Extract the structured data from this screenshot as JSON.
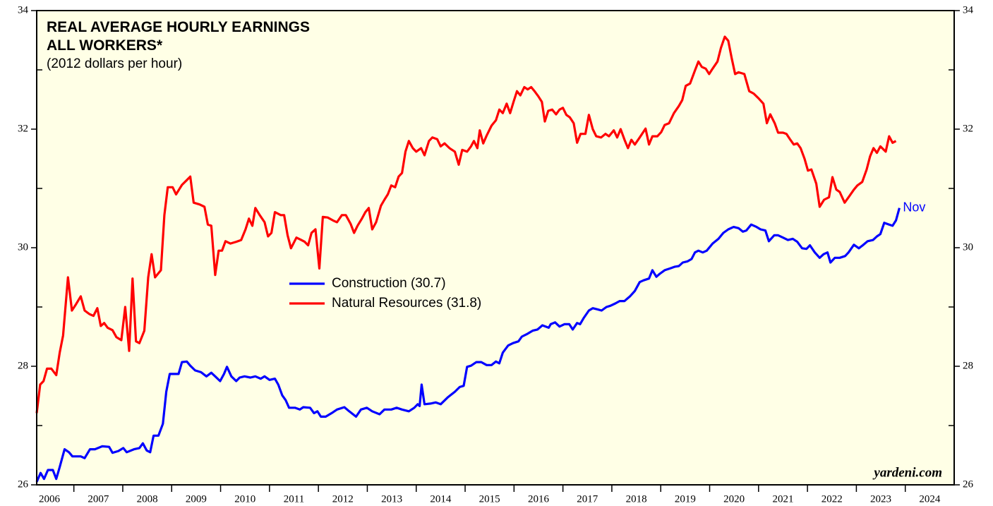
{
  "chart_data": {
    "type": "line",
    "title": [
      "REAL AVERAGE HOURLY EARNINGS",
      "ALL WORKERS*"
    ],
    "subtitle": "(2012 dollars per hour)",
    "source": "yardeni.com",
    "annotation": "Nov",
    "xlim": [
      2006.24,
      2025
    ],
    "xticks": [
      {
        "value": 2006.5,
        "label": "2006"
      },
      {
        "value": 2007.5,
        "label": "2007"
      },
      {
        "value": 2008.5,
        "label": "2008"
      },
      {
        "value": 2009.5,
        "label": "2009"
      },
      {
        "value": 2010.5,
        "label": "2010"
      },
      {
        "value": 2011.5,
        "label": "2011"
      },
      {
        "value": 2012.5,
        "label": "2012"
      },
      {
        "value": 2013.5,
        "label": "2013"
      },
      {
        "value": 2014.5,
        "label": "2014"
      },
      {
        "value": 2015.5,
        "label": "2015"
      },
      {
        "value": 2016.5,
        "label": "2016"
      },
      {
        "value": 2017.5,
        "label": "2017"
      },
      {
        "value": 2018.5,
        "label": "2018"
      },
      {
        "value": 2019.5,
        "label": "2019"
      },
      {
        "value": 2020.5,
        "label": "2020"
      },
      {
        "value": 2021.5,
        "label": "2021"
      },
      {
        "value": 2022.5,
        "label": "2022"
      },
      {
        "value": 2023.5,
        "label": "2023"
      },
      {
        "value": 2024.5,
        "label": "2024"
      }
    ],
    "ylim": [
      26,
      34
    ],
    "yticks": [
      26,
      28,
      30,
      32,
      34
    ],
    "yminorticks": [
      27,
      29,
      31,
      33
    ],
    "series": [
      {
        "name": "Construction (30.7)",
        "color": "#0000ff",
        "x": [
          2006.24,
          2006.32,
          2006.39,
          2006.47,
          2006.57,
          2006.64,
          2006.71,
          2006.81,
          2006.9,
          2006.97,
          2007.14,
          2007.22,
          2007.33,
          2007.43,
          2007.58,
          2007.72,
          2007.79,
          2007.91,
          2008.01,
          2008.08,
          2008.23,
          2008.34,
          2008.41,
          2008.49,
          2008.56,
          2008.63,
          2008.73,
          2008.82,
          2008.89,
          2008.96,
          2009.14,
          2009.21,
          2009.31,
          2009.38,
          2009.48,
          2009.6,
          2009.71,
          2009.81,
          2009.89,
          2009.99,
          2010.07,
          2010.13,
          2010.22,
          2010.32,
          2010.39,
          2010.49,
          2010.61,
          2010.71,
          2010.82,
          2010.9,
          2011.0,
          2011.11,
          2011.18,
          2011.26,
          2011.33,
          2011.4,
          2011.52,
          2011.62,
          2011.69,
          2011.83,
          2011.91,
          2011.98,
          2012.05,
          2012.15,
          2012.27,
          2012.38,
          2012.53,
          2012.63,
          2012.77,
          2012.87,
          2012.99,
          2013.1,
          2013.25,
          2013.35,
          2013.49,
          2013.6,
          2013.71,
          2013.85,
          2013.96,
          2014.03,
          2014.07,
          2014.11,
          2014.17,
          2014.29,
          2014.4,
          2014.5,
          2014.65,
          2014.79,
          2014.89,
          2014.97,
          2015.04,
          2015.12,
          2015.23,
          2015.33,
          2015.44,
          2015.54,
          2015.63,
          2015.7,
          2015.77,
          2015.88,
          2015.98,
          2016.09,
          2016.16,
          2016.26,
          2016.38,
          2016.48,
          2016.58,
          2016.71,
          2016.75,
          2016.84,
          2016.93,
          2017.03,
          2017.13,
          2017.2,
          2017.29,
          2017.35,
          2017.43,
          2017.53,
          2017.61,
          2017.71,
          2017.79,
          2017.89,
          2017.97,
          2018.07,
          2018.16,
          2018.26,
          2018.37,
          2018.47,
          2018.57,
          2018.65,
          2018.76,
          2018.83,
          2018.91,
          2018.98,
          2019.08,
          2019.19,
          2019.29,
          2019.37,
          2019.45,
          2019.55,
          2019.63,
          2019.7,
          2019.77,
          2019.86,
          2019.94,
          2020.06,
          2020.18,
          2020.28,
          2020.38,
          2020.49,
          2020.59,
          2020.68,
          2020.75,
          2020.85,
          2020.96,
          2021.04,
          2021.14,
          2021.21,
          2021.32,
          2021.4,
          2021.5,
          2021.6,
          2021.7,
          2021.79,
          2021.89,
          2021.98,
          2022.05,
          2022.15,
          2022.25,
          2022.33,
          2022.41,
          2022.47,
          2022.56,
          2022.66,
          2022.77,
          2022.84,
          2022.95,
          2023.05,
          2023.13,
          2023.23,
          2023.34,
          2023.42,
          2023.49,
          2023.57,
          2023.67,
          2023.74,
          2023.81,
          2023.88
        ],
        "values": [
          26.05,
          26.2,
          26.1,
          26.25,
          26.25,
          26.1,
          26.3,
          26.6,
          26.55,
          26.48,
          26.48,
          26.45,
          26.6,
          26.6,
          26.65,
          26.64,
          26.54,
          26.57,
          26.62,
          26.55,
          26.6,
          26.62,
          26.7,
          26.58,
          26.55,
          26.83,
          26.83,
          27.03,
          27.57,
          27.87,
          27.87,
          28.07,
          28.08,
          28.01,
          27.93,
          27.9,
          27.83,
          27.89,
          27.83,
          27.75,
          27.87,
          27.99,
          27.83,
          27.75,
          27.81,
          27.83,
          27.81,
          27.83,
          27.79,
          27.83,
          27.77,
          27.79,
          27.69,
          27.51,
          27.43,
          27.3,
          27.3,
          27.27,
          27.31,
          27.3,
          27.21,
          27.24,
          27.15,
          27.15,
          27.21,
          27.27,
          27.31,
          27.24,
          27.15,
          27.27,
          27.3,
          27.24,
          27.19,
          27.27,
          27.27,
          27.3,
          27.27,
          27.24,
          27.3,
          27.36,
          27.33,
          27.69,
          27.36,
          27.37,
          27.39,
          27.36,
          27.48,
          27.57,
          27.65,
          27.67,
          27.99,
          28.01,
          28.07,
          28.07,
          28.02,
          28.02,
          28.08,
          28.05,
          28.23,
          28.35,
          28.39,
          28.42,
          28.5,
          28.54,
          28.6,
          28.62,
          28.69,
          28.65,
          28.71,
          28.74,
          28.67,
          28.71,
          28.71,
          28.62,
          28.73,
          28.71,
          28.82,
          28.94,
          28.98,
          28.96,
          28.94,
          29.0,
          29.02,
          29.06,
          29.1,
          29.1,
          29.18,
          29.27,
          29.42,
          29.45,
          29.48,
          29.62,
          29.51,
          29.56,
          29.62,
          29.65,
          29.68,
          29.69,
          29.75,
          29.77,
          29.81,
          29.92,
          29.95,
          29.92,
          29.95,
          30.07,
          30.15,
          30.25,
          30.31,
          30.35,
          30.33,
          30.27,
          30.29,
          30.39,
          30.35,
          30.31,
          30.29,
          30.11,
          30.21,
          30.21,
          30.17,
          30.13,
          30.15,
          30.1,
          29.99,
          29.98,
          30.04,
          29.92,
          29.83,
          29.89,
          29.92,
          29.75,
          29.83,
          29.83,
          29.86,
          29.92,
          30.05,
          29.99,
          30.04,
          30.11,
          30.13,
          30.19,
          30.23,
          30.42,
          30.39,
          30.37,
          30.46,
          30.67
        ]
      },
      {
        "name": "Natural Resources (31.8)",
        "color": "#ff0000",
        "x": [
          2006.24,
          2006.31,
          2006.38,
          2006.45,
          2006.54,
          2006.64,
          2006.71,
          2006.78,
          2006.88,
          2006.96,
          2007.04,
          2007.14,
          2007.22,
          2007.32,
          2007.4,
          2007.48,
          2007.55,
          2007.62,
          2007.69,
          2007.79,
          2007.87,
          2007.97,
          2008.05,
          2008.13,
          2008.2,
          2008.27,
          2008.34,
          2008.44,
          2008.52,
          2008.59,
          2008.66,
          2008.78,
          2008.85,
          2008.92,
          2009.02,
          2009.09,
          2009.21,
          2009.31,
          2009.38,
          2009.45,
          2009.57,
          2009.67,
          2009.74,
          2009.81,
          2009.89,
          2009.96,
          2010.03,
          2010.1,
          2010.2,
          2010.32,
          2010.42,
          2010.51,
          2010.58,
          2010.65,
          2010.71,
          2010.8,
          2010.9,
          2010.97,
          2011.04,
          2011.11,
          2011.23,
          2011.3,
          2011.37,
          2011.44,
          2011.55,
          2011.65,
          2011.72,
          2011.79,
          2011.86,
          2011.94,
          2012.02,
          2012.09,
          2012.19,
          2012.3,
          2012.38,
          2012.48,
          2012.56,
          2012.66,
          2012.73,
          2012.8,
          2012.89,
          2012.96,
          2013.03,
          2013.1,
          2013.18,
          2013.28,
          2013.35,
          2013.42,
          2013.49,
          2013.57,
          2013.64,
          2013.71,
          2013.78,
          2013.85,
          2013.93,
          2014.0,
          2014.1,
          2014.17,
          2014.26,
          2014.33,
          2014.43,
          2014.5,
          2014.58,
          2014.68,
          2014.79,
          2014.87,
          2014.94,
          2015.04,
          2015.12,
          2015.18,
          2015.25,
          2015.3,
          2015.37,
          2015.44,
          2015.54,
          2015.63,
          2015.7,
          2015.77,
          2015.85,
          2015.92,
          2015.99,
          2016.06,
          2016.13,
          2016.21,
          2016.28,
          2016.35,
          2016.42,
          2016.5,
          2016.57,
          2016.63,
          2016.7,
          2016.78,
          2016.86,
          2016.93,
          2017.0,
          2017.07,
          2017.14,
          2017.22,
          2017.29,
          2017.36,
          2017.46,
          2017.53,
          2017.61,
          2017.68,
          2017.78,
          2017.87,
          2017.94,
          2018.04,
          2018.11,
          2018.18,
          2018.26,
          2018.33,
          2018.4,
          2018.47,
          2018.57,
          2018.69,
          2018.76,
          2018.83,
          2018.93,
          2019.01,
          2019.08,
          2019.17,
          2019.27,
          2019.37,
          2019.44,
          2019.51,
          2019.6,
          2019.7,
          2019.77,
          2019.84,
          2019.92,
          2019.99,
          2020.06,
          2020.16,
          2020.23,
          2020.31,
          2020.38,
          2020.45,
          2020.52,
          2020.59,
          2020.71,
          2020.81,
          2020.9,
          2021.0,
          2021.1,
          2021.17,
          2021.24,
          2021.33,
          2021.4,
          2021.5,
          2021.57,
          2021.65,
          2021.72,
          2021.79,
          2021.86,
          2021.94,
          2022.01,
          2022.08,
          2022.18,
          2022.25,
          2022.34,
          2022.44,
          2022.51,
          2022.59,
          2022.66,
          2022.76,
          2022.84,
          2022.95,
          2023.02,
          2023.12,
          2023.21,
          2023.28,
          2023.35,
          2023.42,
          2023.49,
          2023.6,
          2023.67,
          2023.74,
          2023.81
        ],
        "values": [
          27.21,
          27.69,
          27.75,
          27.96,
          27.96,
          27.85,
          28.23,
          28.52,
          29.5,
          28.94,
          29.04,
          29.18,
          28.94,
          28.88,
          28.85,
          28.98,
          28.68,
          28.73,
          28.65,
          28.61,
          28.49,
          28.44,
          29.0,
          28.26,
          29.48,
          28.42,
          28.39,
          28.6,
          29.5,
          29.89,
          29.5,
          29.62,
          30.55,
          31.02,
          31.02,
          30.9,
          31.06,
          31.14,
          31.2,
          30.76,
          30.73,
          30.69,
          30.39,
          30.37,
          29.54,
          29.95,
          29.95,
          30.11,
          30.07,
          30.1,
          30.13,
          30.31,
          30.49,
          30.37,
          30.67,
          30.55,
          30.43,
          30.19,
          30.25,
          30.6,
          30.55,
          30.55,
          30.21,
          29.99,
          30.17,
          30.13,
          30.1,
          30.04,
          30.25,
          30.31,
          29.65,
          30.52,
          30.51,
          30.46,
          30.43,
          30.55,
          30.55,
          30.4,
          30.25,
          30.37,
          30.49,
          30.6,
          30.67,
          30.31,
          30.43,
          30.71,
          30.81,
          30.9,
          31.05,
          31.02,
          31.2,
          31.26,
          31.62,
          31.8,
          31.68,
          31.62,
          31.68,
          31.56,
          31.8,
          31.86,
          31.83,
          31.71,
          31.76,
          31.68,
          31.62,
          31.4,
          31.65,
          31.62,
          31.71,
          31.8,
          31.68,
          31.98,
          31.76,
          31.89,
          32.06,
          32.15,
          32.33,
          32.27,
          32.43,
          32.27,
          32.46,
          32.64,
          32.57,
          32.71,
          32.67,
          32.71,
          32.64,
          32.55,
          32.46,
          32.13,
          32.31,
          32.33,
          32.25,
          32.33,
          32.36,
          32.24,
          32.2,
          32.1,
          31.77,
          31.92,
          31.92,
          32.24,
          32.0,
          31.88,
          31.86,
          31.92,
          31.88,
          31.98,
          31.86,
          32.0,
          31.82,
          31.68,
          31.82,
          31.74,
          31.86,
          32.01,
          31.74,
          31.88,
          31.88,
          31.95,
          32.07,
          32.1,
          32.27,
          32.39,
          32.49,
          32.73,
          32.77,
          32.99,
          33.14,
          33.05,
          33.02,
          32.93,
          33.02,
          33.14,
          33.37,
          33.56,
          33.49,
          33.2,
          32.93,
          32.96,
          32.93,
          32.64,
          32.6,
          32.52,
          32.43,
          32.1,
          32.25,
          32.1,
          31.94,
          31.94,
          31.92,
          31.82,
          31.74,
          31.76,
          31.68,
          31.5,
          31.3,
          31.32,
          31.08,
          30.69,
          30.81,
          30.85,
          31.19,
          30.98,
          30.94,
          30.76,
          30.85,
          30.98,
          31.05,
          31.11,
          31.32,
          31.54,
          31.68,
          31.6,
          31.71,
          31.62,
          31.88,
          31.77,
          31.8
        ]
      }
    ]
  }
}
